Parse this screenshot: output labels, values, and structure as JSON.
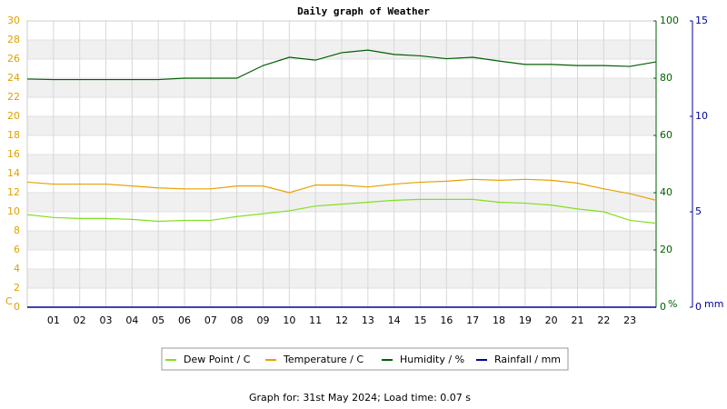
{
  "chart_data": {
    "type": "line",
    "title": "Daily graph of Weather",
    "footer": "Graph for: 31st May 2024; Load time: 0.07 s",
    "y_label": "C",
    "y2_label": "%",
    "y3_label": "mm",
    "x": [
      0,
      1,
      2,
      3,
      4,
      5,
      6,
      7,
      8,
      9,
      10,
      11,
      12,
      13,
      14,
      15,
      16,
      17,
      18,
      19,
      20,
      21,
      22,
      23,
      24
    ],
    "xlim": [
      0,
      24
    ],
    "xticks": [
      {
        "value": 1,
        "label": "01"
      },
      {
        "value": 2,
        "label": "02"
      },
      {
        "value": 3,
        "label": "03"
      },
      {
        "value": 4,
        "label": "04"
      },
      {
        "value": 5,
        "label": "05"
      },
      {
        "value": 6,
        "label": "06"
      },
      {
        "value": 7,
        "label": "07"
      },
      {
        "value": 8,
        "label": "08"
      },
      {
        "value": 9,
        "label": "09"
      },
      {
        "value": 10,
        "label": "10"
      },
      {
        "value": 11,
        "label": "11"
      },
      {
        "value": 12,
        "label": "12"
      },
      {
        "value": 13,
        "label": "13"
      },
      {
        "value": 14,
        "label": "14"
      },
      {
        "value": 15,
        "label": "15"
      },
      {
        "value": 16,
        "label": "16"
      },
      {
        "value": 17,
        "label": "17"
      },
      {
        "value": 18,
        "label": "18"
      },
      {
        "value": 19,
        "label": "19"
      },
      {
        "value": 20,
        "label": "20"
      },
      {
        "value": 21,
        "label": "21"
      },
      {
        "value": 22,
        "label": "22"
      },
      {
        "value": 23,
        "label": "23"
      }
    ],
    "ylim": [
      0,
      30
    ],
    "yticks": [
      0,
      2,
      4,
      6,
      8,
      10,
      12,
      14,
      16,
      18,
      20,
      22,
      24,
      26,
      28,
      30
    ],
    "y2lim": [
      0,
      100
    ],
    "y2ticks": [
      0,
      20,
      40,
      60,
      80,
      100
    ],
    "y3lim": [
      0,
      15
    ],
    "y3ticks": [
      0,
      5,
      10,
      15
    ],
    "grid": true,
    "series": [
      {
        "name": "Dew Point / C",
        "color": "#80e020",
        "values": [
          9.7,
          9.4,
          9.3,
          9.3,
          9.2,
          9.0,
          9.1,
          9.1,
          9.5,
          9.8,
          10.1,
          10.6,
          10.8,
          11.0,
          11.2,
          11.3,
          11.3,
          11.3,
          11.0,
          10.9,
          10.7,
          10.3,
          10.0,
          9.1,
          8.8
        ]
      },
      {
        "name": "Temperature / C",
        "color": "#e8a000",
        "values": [
          13.1,
          12.9,
          12.9,
          12.9,
          12.7,
          12.5,
          12.4,
          12.4,
          12.7,
          12.7,
          12.0,
          12.8,
          12.8,
          12.6,
          12.9,
          13.1,
          13.2,
          13.4,
          13.3,
          13.4,
          13.3,
          13.0,
          12.4,
          11.9,
          11.2
        ]
      },
      {
        "name": "Humidity / %",
        "color": "#006000",
        "axis": "y2",
        "values": [
          79.7,
          79.5,
          79.5,
          79.5,
          79.5,
          79.5,
          80,
          80,
          80,
          84.4,
          87.3,
          86.3,
          88.9,
          89.8,
          88.3,
          87.8,
          86.8,
          87.3,
          86,
          84.8,
          84.8,
          84.4,
          84.4,
          84.1,
          85.7
        ]
      },
      {
        "name": "Rainfall / mm",
        "color": "#0000a0",
        "axis": "y3",
        "values": [
          0,
          0,
          0,
          0,
          0,
          0,
          0,
          0,
          0,
          0,
          0,
          0,
          0,
          0,
          0,
          0,
          0,
          0,
          0,
          0,
          0,
          0,
          0,
          0,
          0
        ]
      }
    ]
  }
}
